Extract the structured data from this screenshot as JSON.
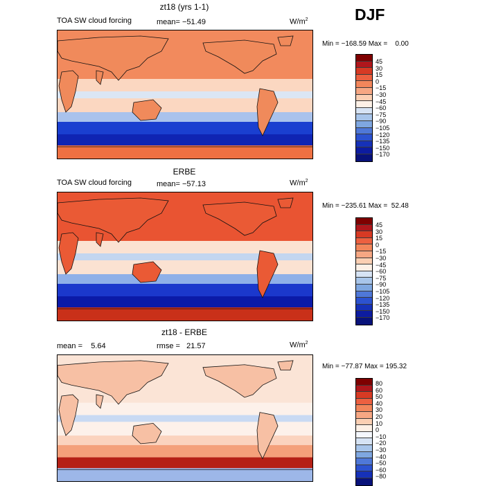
{
  "season": "DJF",
  "panels": [
    {
      "title": "zt18 (yrs 1-1)",
      "left_label": "TOA SW cloud forcing",
      "mean_text": "mean= −51.49",
      "units": "W/m",
      "units_sup": "2",
      "minmax": "Min = −168.59 Max =    0.00",
      "colorbar_labels": [
        "45",
        "30",
        "15",
        "0",
        "−15",
        "−30",
        "−45",
        "−60",
        "−75",
        "−90",
        "−105",
        "−120",
        "−135",
        "−150",
        "−170"
      ],
      "colorbar_colors": [
        "#7f0000",
        "#b0171c",
        "#d73a24",
        "#ec6040",
        "#f2865b",
        "#f6a783",
        "#fbcfb3",
        "#fdf0e6",
        "#d6e3f4",
        "#a8c5ea",
        "#7fa7e0",
        "#4f78d8",
        "#2c52d0",
        "#1631b8",
        "#0d1ca0",
        "#08127a"
      ],
      "fill_colors": {
        "land": "#f08a5b",
        "ocean_high": "#f28a5d",
        "tropic": "#fbd7c1",
        "itcz": "#dbe6f4",
        "southern_light": "#a9c2ec",
        "southern_deep": "#1a3fd0",
        "southern_core": "#0f24b3",
        "antarctic": "#ee7042"
      }
    },
    {
      "title": "ERBE",
      "left_label": "TOA SW cloud forcing",
      "mean_text": "mean= −57.13",
      "units": "W/m",
      "units_sup": "2",
      "minmax": "Min = −235.61 Max =  52.48",
      "colorbar_labels": [
        "45",
        "30",
        "15",
        "0",
        "−15",
        "−30",
        "−45",
        "−60",
        "−75",
        "−90",
        "−105",
        "−120",
        "−135",
        "−150",
        "−170"
      ],
      "colorbar_colors": [
        "#7f0000",
        "#b0171c",
        "#d73a24",
        "#ec6040",
        "#f2865b",
        "#f6a783",
        "#fbcfb3",
        "#fdf0e6",
        "#d6e3f4",
        "#a8c5ea",
        "#7fa7e0",
        "#4f78d8",
        "#2c52d0",
        "#1631b8",
        "#0d1ca0",
        "#08127a"
      ],
      "fill_colors": {
        "land": "#ea5a35",
        "ocean_high": "#e95432",
        "tropic": "#fbe2d2",
        "itcz": "#c3d6f0",
        "southern_light": "#8fb0e8",
        "southern_deep": "#1b38cc",
        "southern_core": "#0b1aa8",
        "antarctic": "#c93019"
      }
    },
    {
      "title": "zt18 - ERBE",
      "left_label": "mean =    5.64",
      "mean_text": "rmse =   21.57",
      "units": "W/m",
      "units_sup": "2",
      "minmax": "Min = −77.87 Max = 195.32",
      "colorbar_labels": [
        "80",
        "60",
        "50",
        "40",
        "30",
        "20",
        "10",
        "0",
        "−10",
        "−20",
        "−30",
        "−40",
        "−50",
        "−60",
        "−80"
      ],
      "colorbar_colors": [
        "#7f0000",
        "#b0171c",
        "#d73a24",
        "#ec6040",
        "#f2865b",
        "#f6a783",
        "#fbcfb3",
        "#fdf0e6",
        "#f4f7fd",
        "#d6e3f4",
        "#a8c5ea",
        "#7fa7e0",
        "#4f78d8",
        "#2c52d0",
        "#1631b8",
        "#08127a"
      ],
      "fill_colors": {
        "land": "#f7c0a4",
        "ocean_high": "#fbe4d6",
        "tropic": "#fdf1ea",
        "itcz": "#c9daf3",
        "southern_light": "#fbd3be",
        "southern_deep": "#f4a07a",
        "southern_core": "#b52015",
        "antarctic": "#9db7e8"
      }
    }
  ]
}
